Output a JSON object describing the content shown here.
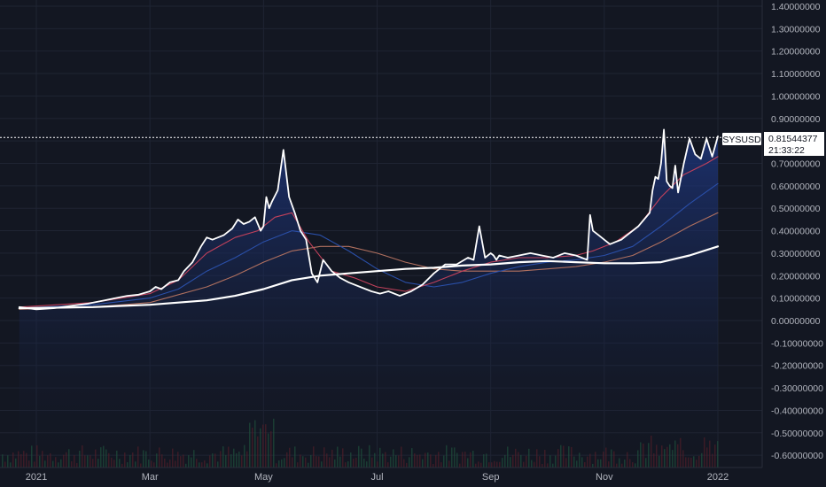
{
  "chart_data": {
    "type": "area",
    "symbol": "SYSUSD",
    "last_price": "0.81544377",
    "countdown": "21:33:22",
    "y_axis": {
      "ticks": [
        1.4,
        1.3,
        1.2,
        1.1,
        1.0,
        0.9,
        0.8,
        0.7,
        0.6,
        0.5,
        0.4,
        0.3,
        0.2,
        0.1,
        0.0,
        -0.1,
        -0.2,
        -0.3,
        -0.4,
        -0.5,
        -0.6
      ],
      "tick_labels": [
        "1.40000000",
        "1.30000000",
        "1.20000000",
        "1.10000000",
        "1.00000000",
        "0.90000000",
        "0.80000000",
        "0.70000000",
        "0.60000000",
        "0.50000000",
        "0.40000000",
        "0.30000000",
        "0.20000000",
        "0.10000000",
        "0.00000000",
        "-0.10000000",
        "-0.20000000",
        "-0.30000000",
        "-0.40000000",
        "-0.50000000",
        "-0.60000000"
      ],
      "ylim": [
        -0.65,
        1.45
      ]
    },
    "x_axis": {
      "tick_labels": [
        "2021",
        "Mar",
        "May",
        "Jul",
        "Sep",
        "Nov",
        "2022"
      ],
      "tick_months": [
        0,
        2,
        4,
        6,
        8,
        10,
        12
      ],
      "xlim_months": [
        -0.3,
        12.3
      ]
    },
    "grid": true,
    "series": [
      {
        "kind": "price",
        "color": "#ffffff",
        "x": [
          -0.3,
          0,
          0.3,
          0.6,
          0.9,
          1.2,
          1.4,
          1.6,
          1.8,
          2.0,
          2.1,
          2.2,
          2.35,
          2.5,
          2.6,
          2.75,
          2.9,
          3.0,
          3.1,
          3.3,
          3.45,
          3.55,
          3.65,
          3.75,
          3.85,
          3.95,
          4.0,
          4.05,
          4.1,
          4.15,
          4.25,
          4.35,
          4.45,
          4.55,
          4.65,
          4.75,
          4.85,
          4.95,
          5.05,
          5.2,
          5.35,
          5.5,
          5.7,
          5.9,
          6.05,
          6.2,
          6.4,
          6.6,
          6.8,
          7.0,
          7.2,
          7.4,
          7.6,
          7.7,
          7.8,
          7.9,
          8.0,
          8.05,
          8.1,
          8.15,
          8.3,
          8.5,
          8.7,
          8.9,
          9.1,
          9.3,
          9.5,
          9.7,
          9.75,
          9.8,
          9.9,
          10.0,
          10.1,
          10.2,
          10.3,
          10.4,
          10.5,
          10.6,
          10.7,
          10.8,
          10.85,
          10.9,
          10.95,
          11.0,
          11.05,
          11.1,
          11.15,
          11.2,
          11.25,
          11.3,
          11.4,
          11.5,
          11.6,
          11.7,
          11.8,
          11.9,
          12.0
        ],
        "y": [
          0.06,
          0.05,
          0.055,
          0.065,
          0.075,
          0.09,
          0.1,
          0.11,
          0.115,
          0.13,
          0.15,
          0.14,
          0.17,
          0.18,
          0.22,
          0.26,
          0.33,
          0.37,
          0.36,
          0.38,
          0.41,
          0.45,
          0.43,
          0.44,
          0.46,
          0.4,
          0.42,
          0.55,
          0.5,
          0.53,
          0.58,
          0.76,
          0.55,
          0.48,
          0.4,
          0.36,
          0.21,
          0.17,
          0.27,
          0.22,
          0.19,
          0.17,
          0.15,
          0.13,
          0.12,
          0.13,
          0.11,
          0.13,
          0.16,
          0.21,
          0.25,
          0.25,
          0.28,
          0.27,
          0.42,
          0.28,
          0.3,
          0.29,
          0.27,
          0.29,
          0.28,
          0.29,
          0.3,
          0.29,
          0.28,
          0.3,
          0.29,
          0.27,
          0.47,
          0.4,
          0.38,
          0.36,
          0.34,
          0.35,
          0.36,
          0.38,
          0.4,
          0.42,
          0.45,
          0.48,
          0.58,
          0.64,
          0.63,
          0.7,
          0.85,
          0.62,
          0.6,
          0.59,
          0.69,
          0.57,
          0.7,
          0.81,
          0.74,
          0.72,
          0.81,
          0.73,
          0.82
        ]
      },
      {
        "kind": "ma-fast",
        "color": "#c2415b",
        "x": [
          -0.3,
          1,
          2,
          2.5,
          3,
          3.5,
          3.9,
          4.2,
          4.5,
          4.8,
          5.2,
          5.6,
          6.0,
          6.5,
          7.0,
          7.5,
          8.0,
          8.5,
          9.0,
          9.5,
          9.8,
          10.2,
          10.6,
          11.0,
          11.4,
          11.8,
          12.0
        ],
        "y": [
          0.06,
          0.08,
          0.12,
          0.18,
          0.3,
          0.37,
          0.4,
          0.46,
          0.48,
          0.35,
          0.22,
          0.19,
          0.15,
          0.13,
          0.17,
          0.22,
          0.26,
          0.28,
          0.28,
          0.29,
          0.31,
          0.35,
          0.42,
          0.55,
          0.65,
          0.7,
          0.73
        ]
      },
      {
        "kind": "ma-mid",
        "color": "#2a4fa8",
        "x": [
          -0.3,
          1,
          2,
          2.5,
          3,
          3.5,
          4.0,
          4.5,
          5.0,
          5.5,
          6.0,
          6.5,
          7.0,
          7.5,
          8.0,
          8.5,
          9.0,
          9.5,
          10.0,
          10.5,
          11.0,
          11.5,
          12.0
        ],
        "y": [
          0.055,
          0.07,
          0.1,
          0.14,
          0.22,
          0.28,
          0.35,
          0.4,
          0.38,
          0.31,
          0.23,
          0.17,
          0.15,
          0.17,
          0.21,
          0.24,
          0.26,
          0.27,
          0.29,
          0.33,
          0.42,
          0.52,
          0.61
        ]
      },
      {
        "kind": "ma-slow",
        "color": "#b0705f",
        "x": [
          -0.3,
          1,
          2,
          3,
          3.5,
          4.0,
          4.5,
          5.0,
          5.5,
          6.0,
          6.5,
          7.0,
          7.5,
          8.0,
          8.5,
          9.0,
          9.5,
          10.0,
          10.5,
          11.0,
          11.5,
          12.0
        ],
        "y": [
          0.05,
          0.06,
          0.08,
          0.15,
          0.2,
          0.26,
          0.31,
          0.33,
          0.33,
          0.3,
          0.26,
          0.23,
          0.22,
          0.22,
          0.22,
          0.23,
          0.24,
          0.26,
          0.29,
          0.35,
          0.42,
          0.48
        ]
      },
      {
        "kind": "ma-long",
        "color": "#ffffff",
        "x": [
          -0.3,
          1,
          2,
          3,
          3.5,
          4.0,
          4.5,
          5.0,
          5.5,
          6.0,
          6.5,
          7.0,
          7.5,
          8.0,
          8.5,
          9.0,
          9.5,
          10.0,
          10.5,
          11.0,
          11.5,
          12.0
        ],
        "y": [
          0.055,
          0.06,
          0.07,
          0.09,
          0.11,
          0.14,
          0.18,
          0.2,
          0.21,
          0.22,
          0.23,
          0.235,
          0.245,
          0.25,
          0.26,
          0.265,
          0.26,
          0.255,
          0.255,
          0.26,
          0.29,
          0.33
        ]
      }
    ]
  }
}
